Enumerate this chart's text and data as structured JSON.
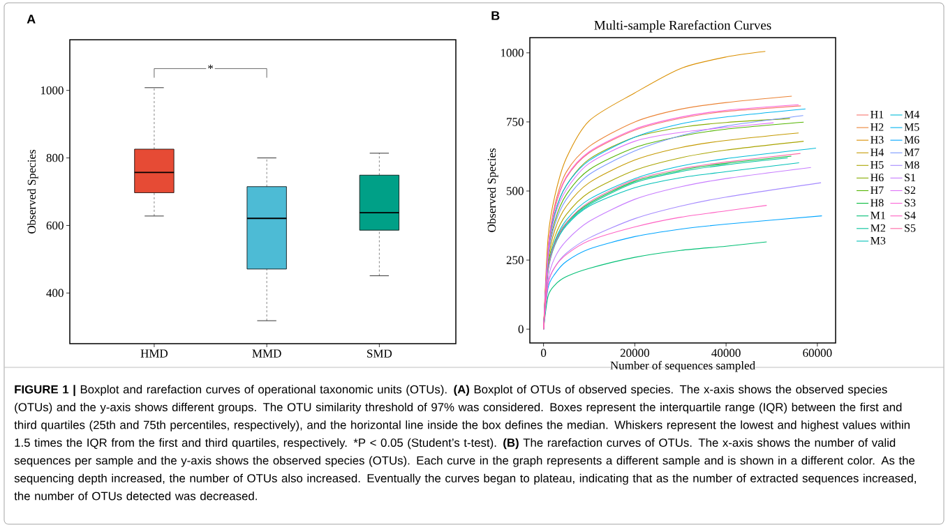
{
  "chart_data": [
    {
      "type": "box",
      "categories": [
        "HMD",
        "MMD",
        "SMD"
      ],
      "boxes": [
        {
          "low": 628,
          "q1": 697,
          "median": 757,
          "q3": 826,
          "high": 1008
        },
        {
          "low": 318,
          "q1": 471,
          "median": 621,
          "q3": 715,
          "high": 800
        },
        {
          "low": 451,
          "q1": 586,
          "median": 638,
          "q3": 749,
          "high": 814
        }
      ],
      "colors": [
        "#e64b35",
        "#4dbbd5",
        "#00a087"
      ],
      "ylabel": "Observed Species",
      "ylim": [
        250,
        1150
      ],
      "yticks": [
        400,
        600,
        800,
        1000
      ],
      "annotations": [
        "A",
        "*",
        "**FIGURE 1 |** Boxplot and rarefaction curves of operational taxonomic units (OTUs). **(A)** Boxplot of OTUs of observed species. The x-axis shows the observed species (OTUs) and the y-axis shows different groups. The OTU similarity threshold of 97% was considered. Boxes represent the interquartile range (IQR) between the first and third quartiles (25th and 75th percentiles, respectively), and the horizontal line inside the box defines the median. Whiskers represent the lowest and highest values within 1.5 times the IQR from the first and third quartiles, respectively.",
        "*P < 0.05 (Student’s t-test).",
        "**(B)** The rarefaction curves of OTUs. The x-axis shows the number of valid sequences per sample and the y-axis shows the observed species (OTUs). Each curve in the graph represents a different sample and is shown in a different color. As the sequencing depth increased, the number of OTUs also increased. Eventually the curves began to plateau, indicating that as the number of extracted sequences increased, the number of OTUs detected was decreased."
      ]
    },
    {
      "type": "line",
      "title": "Multi-sample Rarefaction Curves",
      "xlabel": "Number of sequences sampled",
      "ylabel": "Observed Species",
      "xlim": [
        -3000,
        64000
      ],
      "ylim": [
        -50,
        1055
      ],
      "xticks": [
        0,
        20000,
        40000,
        60000
      ],
      "yticks": [
        0,
        250,
        500,
        750,
        1000
      ],
      "legend": "right",
      "annotations": [
        "B"
      ],
      "series": [
        {
          "name": "H1",
          "color": "#f8766d",
          "x": [
            0,
            1000,
            2500,
            5000,
            10000,
            20000,
            30000,
            40000,
            56400
          ],
          "values": [
            0,
            288,
            438,
            548,
            638,
            720,
            763,
            788,
            808
          ]
        },
        {
          "name": "H2",
          "color": "#eb8335",
          "x": [
            0,
            1000,
            2500,
            5000,
            10000,
            20000,
            30000,
            40000,
            54400
          ],
          "values": [
            0,
            290,
            451,
            569,
            661,
            750,
            796,
            820,
            843
          ]
        },
        {
          "name": "H3",
          "color": "#da8f00",
          "x": [
            0,
            1000,
            2500,
            5000,
            10000,
            20000,
            30000,
            40000,
            48600
          ],
          "values": [
            0,
            333,
            484,
            619,
            754,
            855,
            943,
            985,
            1005
          ]
        },
        {
          "name": "H4",
          "color": "#c49a00",
          "x": [
            0,
            1000,
            2500,
            5000,
            10000,
            20000,
            30000,
            40000,
            55900
          ],
          "values": [
            0,
            245,
            360,
            445,
            530,
            612,
            657,
            683,
            710
          ]
        },
        {
          "name": "H5",
          "color": "#a9a400",
          "x": [
            0,
            1000,
            2500,
            5000,
            10000,
            20000,
            30000,
            40000,
            57000
          ],
          "values": [
            0,
            230,
            335,
            415,
            495,
            575,
            620,
            648,
            680
          ]
        },
        {
          "name": "H6",
          "color": "#86ac00",
          "x": [
            0,
            1000,
            2500,
            5000,
            10000,
            20000,
            30000,
            40000,
            54000
          ],
          "values": [
            0,
            275,
            420,
            520,
            615,
            695,
            730,
            748,
            762
          ]
        },
        {
          "name": "H7",
          "color": "#53b400",
          "x": [
            0,
            1000,
            2500,
            5000,
            10000,
            20000,
            30000,
            40000,
            57000
          ],
          "values": [
            0,
            268,
            392,
            487,
            577,
            657,
            698,
            724,
            749
          ]
        },
        {
          "name": "H8",
          "color": "#00ba38",
          "x": [
            0,
            1000,
            2500,
            5000,
            10000,
            20000,
            30000,
            40000,
            54300
          ],
          "values": [
            0,
            220,
            315,
            385,
            455,
            535,
            575,
            600,
            626
          ]
        },
        {
          "name": "M1",
          "color": "#00bf74",
          "x": [
            0,
            1000,
            2500,
            5000,
            10000,
            20000,
            30000,
            40000,
            48900
          ],
          "values": [
            0,
            120,
            160,
            190,
            220,
            260,
            285,
            300,
            316
          ]
        },
        {
          "name": "M2",
          "color": "#00c19a",
          "x": [
            0,
            1000,
            2500,
            5000,
            10000,
            20000,
            30000,
            40000,
            53500
          ],
          "values": [
            0,
            215,
            310,
            380,
            450,
            530,
            570,
            595,
            620
          ]
        },
        {
          "name": "M3",
          "color": "#00c0b8",
          "x": [
            0,
            1000,
            2500,
            5000,
            10000,
            20000,
            30000,
            40000,
            56000
          ],
          "values": [
            0,
            210,
            305,
            375,
            445,
            512,
            548,
            570,
            602
          ]
        },
        {
          "name": "M4",
          "color": "#00bcd8",
          "x": [
            0,
            1000,
            2500,
            5000,
            10000,
            20000,
            30000,
            40000,
            59700
          ],
          "values": [
            0,
            220,
            320,
            395,
            470,
            545,
            590,
            617,
            655
          ]
        },
        {
          "name": "M5",
          "color": "#00b4ef",
          "x": [
            0,
            1000,
            2500,
            5000,
            10000,
            20000,
            30000,
            40000,
            57400
          ],
          "values": [
            0,
            280,
            420,
            520,
            610,
            695,
            743,
            768,
            797
          ]
        },
        {
          "name": "M6",
          "color": "#00a5ff",
          "x": [
            0,
            1000,
            2500,
            5000,
            10000,
            20000,
            30000,
            40000,
            61000
          ],
          "values": [
            0,
            150,
            200,
            245,
            290,
            335,
            362,
            380,
            410
          ]
        },
        {
          "name": "M7",
          "color": "#7997ff",
          "x": [
            0,
            1000,
            2500,
            5000,
            10000,
            20000,
            30000,
            40000,
            56900
          ],
          "values": [
            0,
            260,
            380,
            470,
            560,
            645,
            700,
            735,
            773
          ]
        },
        {
          "name": "M8",
          "color": "#a58aff",
          "x": [
            0,
            1000,
            2500,
            5000,
            10000,
            20000,
            30000,
            40000,
            60800
          ],
          "values": [
            0,
            165,
            225,
            275,
            330,
            400,
            445,
            478,
            530
          ]
        },
        {
          "name": "S1",
          "color": "#c77cff",
          "x": [
            0,
            1000,
            2500,
            5000,
            10000,
            20000,
            30000,
            40000,
            58600
          ],
          "values": [
            0,
            180,
            260,
            320,
            390,
            470,
            515,
            545,
            585
          ]
        },
        {
          "name": "S2",
          "color": "#de71f9",
          "x": [
            0,
            1000,
            2500,
            5000,
            10000,
            20000,
            30000,
            40000,
            50400
          ],
          "values": [
            0,
            270,
            410,
            505,
            600,
            680,
            712,
            730,
            747
          ]
        },
        {
          "name": "S3",
          "color": "#fb61d7",
          "x": [
            0,
            1000,
            2500,
            5000,
            10000,
            20000,
            30000,
            40000,
            55900
          ],
          "values": [
            0,
            292,
            442,
            552,
            642,
            724,
            767,
            792,
            812
          ]
        },
        {
          "name": "S4",
          "color": "#ff61c3",
          "x": [
            0,
            1000,
            2500,
            5000,
            10000,
            20000,
            30000,
            40000,
            48900
          ],
          "values": [
            0,
            165,
            225,
            270,
            320,
            370,
            405,
            428,
            448
          ]
        },
        {
          "name": "S5",
          "color": "#ff67a4",
          "x": [
            0,
            1000,
            2500,
            5000,
            10000,
            20000,
            30000,
            40000,
            56300
          ],
          "values": [
            0,
            215,
            310,
            385,
            460,
            540,
            580,
            605,
            636
          ]
        }
      ]
    }
  ]
}
